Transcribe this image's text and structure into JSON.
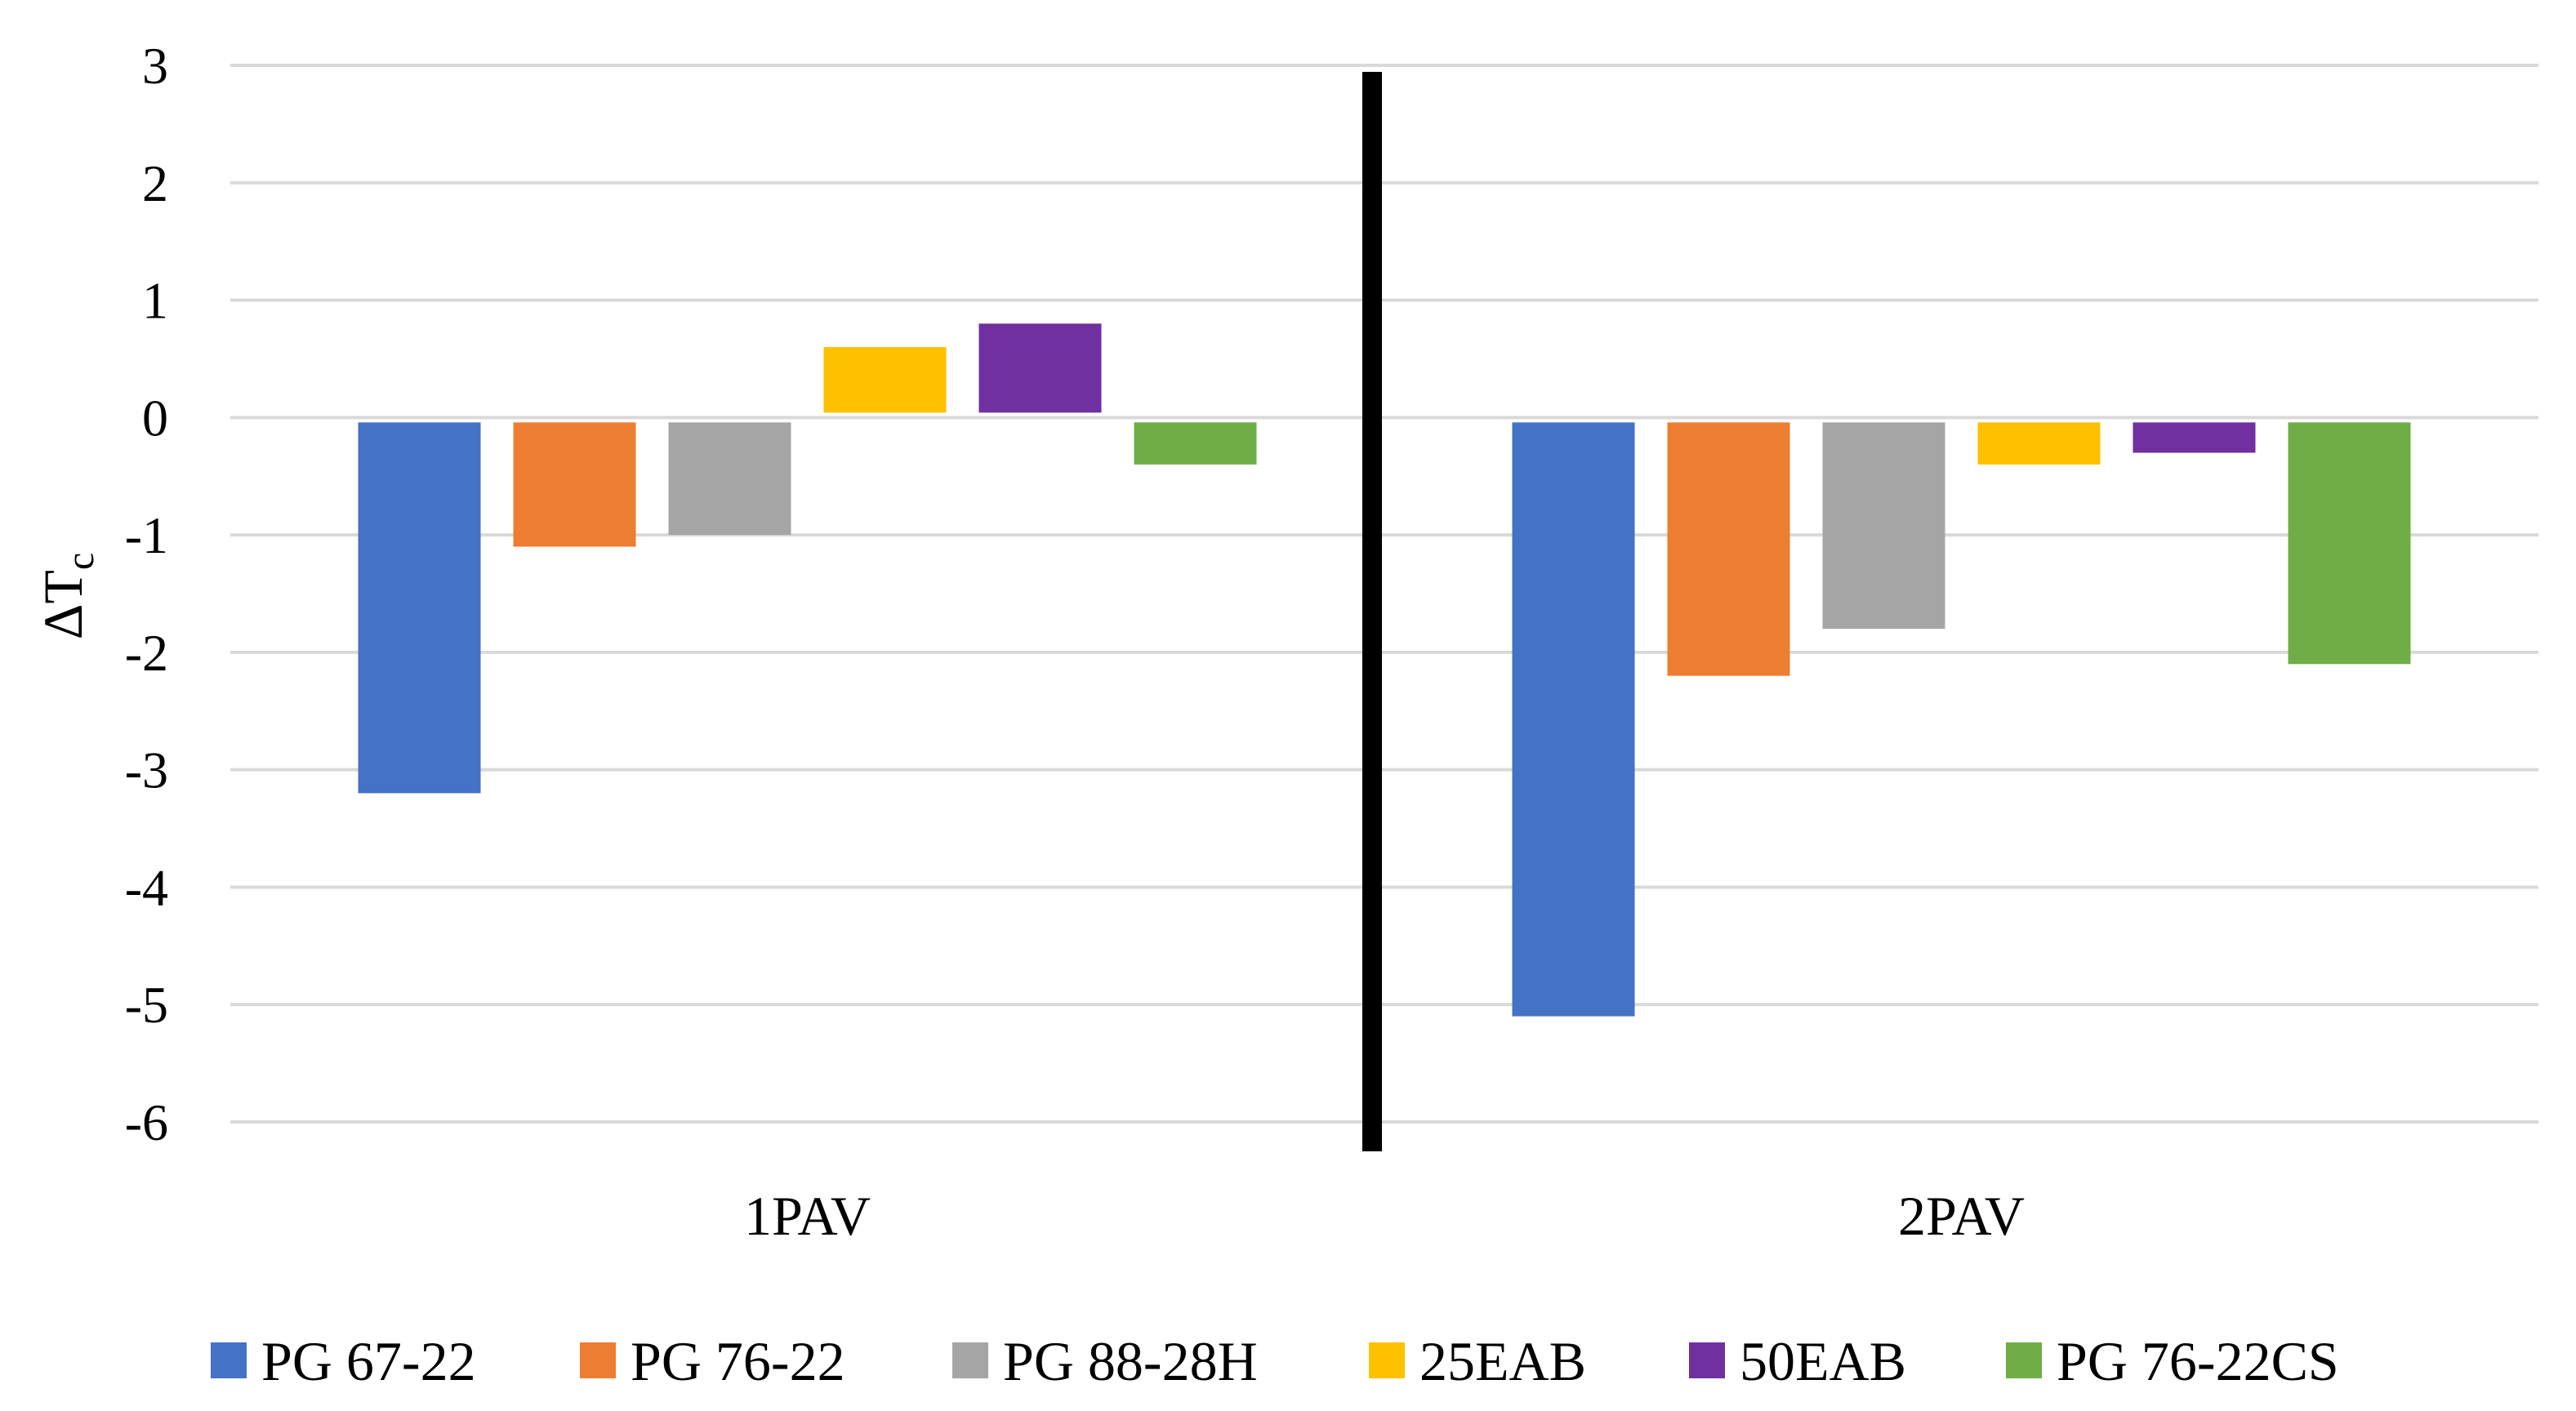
{
  "chart_data": {
    "type": "bar",
    "title": "",
    "xlabel": "",
    "ylabel": "ΔT",
    "ylabel_subscript": "c",
    "ylim": [
      -6,
      3
    ],
    "yticks": [
      3,
      2,
      1,
      0,
      -1,
      -2,
      -3,
      -4,
      -5,
      -6
    ],
    "grid": true,
    "legend_position": "bottom",
    "divider": "vertical line between categories",
    "categories": [
      "1PAV",
      "2PAV"
    ],
    "series": [
      {
        "name": "PG 67-22",
        "color": "#4472C4",
        "values": [
          -3.2,
          -5.1
        ]
      },
      {
        "name": "PG 76-22",
        "color": "#ED7D31",
        "values": [
          -1.1,
          -2.2
        ]
      },
      {
        "name": "PG 88-28H",
        "color": "#A5A5A5",
        "values": [
          -1.0,
          -1.8
        ]
      },
      {
        "name": "25EAB",
        "color": "#FFC000",
        "values": [
          0.6,
          -0.4
        ]
      },
      {
        "name": "50EAB",
        "color": "#7030A0",
        "values": [
          0.8,
          -0.3
        ]
      },
      {
        "name": "PG 76-22CS",
        "color": "#70AD47",
        "values": [
          -0.4,
          -2.1
        ]
      }
    ]
  }
}
